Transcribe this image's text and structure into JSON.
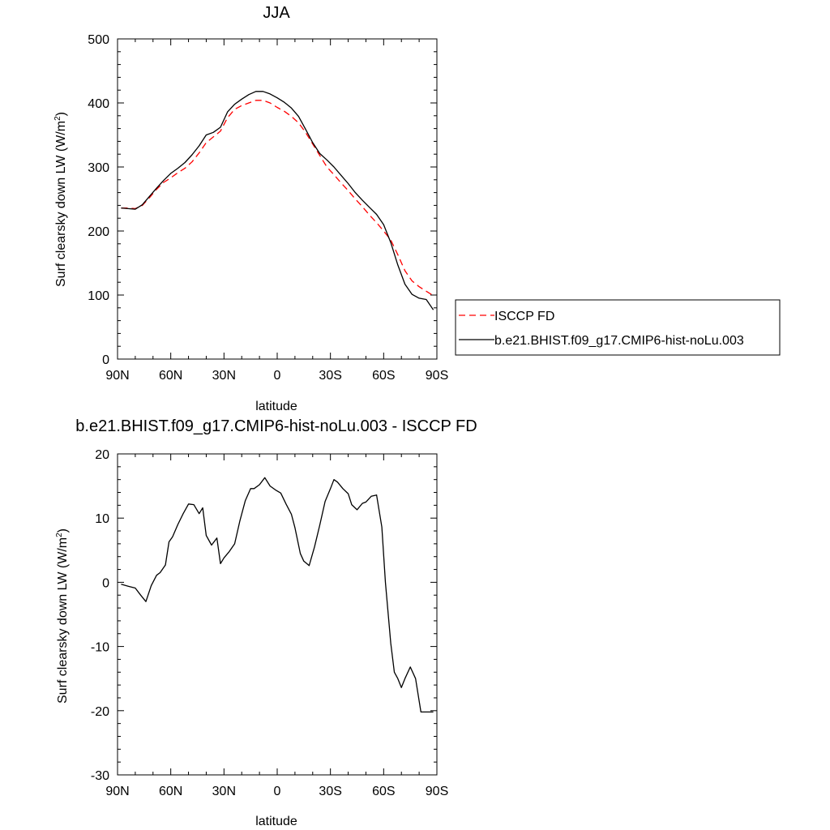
{
  "chart_data": [
    {
      "type": "line",
      "title": "JJA",
      "xlabel": "latitude",
      "ylabel": "Surf clearsky down LW (W/m",
      "ylabel_sup": "2",
      "ylabel_close": ")",
      "xlim": [
        90,
        -90
      ],
      "ylim": [
        0,
        500
      ],
      "x_ticks": [
        90,
        60,
        30,
        0,
        -30,
        -60,
        -90
      ],
      "x_tick_labels": [
        "90N",
        "60N",
        "30N",
        "0",
        "30S",
        "60S",
        "90S"
      ],
      "y_ticks": [
        0,
        100,
        200,
        300,
        400,
        500
      ],
      "y_tick_labels": [
        "0",
        "100",
        "200",
        "300",
        "400",
        "500"
      ],
      "grid": false,
      "legend_placement": "right",
      "series": [
        {
          "name": "ISCCP FD",
          "color": "#ff0000",
          "dash": "dashed",
          "x": [
            88,
            84,
            80,
            76,
            72,
            68,
            64,
            60,
            56,
            52,
            48,
            44,
            40,
            36,
            32,
            28,
            24,
            20,
            16,
            12,
            8,
            4,
            0,
            -4,
            -8,
            -12,
            -16,
            -20,
            -24,
            -28,
            -32,
            -36,
            -40,
            -44,
            -48,
            -52,
            -56,
            -60,
            -64,
            -68,
            -72,
            -76,
            -80,
            -84,
            -88
          ],
          "y": [
            236,
            236,
            235,
            240,
            252,
            265,
            276,
            283,
            291,
            298,
            308,
            322,
            338,
            347,
            356,
            377,
            390,
            396,
            400,
            404,
            404,
            400,
            393,
            387,
            379,
            369,
            354,
            336,
            318,
            300,
            288,
            275,
            263,
            250,
            238,
            225,
            213,
            200,
            186,
            163,
            138,
            122,
            113,
            106,
            99
          ]
        },
        {
          "name": "b.e21.BHIST.f09_g17.CMIP6-hist-noLu.003",
          "color": "#000000",
          "dash": "solid",
          "x": [
            88,
            84,
            80,
            76,
            72,
            68,
            64,
            60,
            56,
            52,
            48,
            44,
            40,
            36,
            32,
            28,
            24,
            20,
            16,
            12,
            8,
            4,
            0,
            -4,
            -8,
            -12,
            -16,
            -20,
            -24,
            -28,
            -32,
            -36,
            -40,
            -44,
            -48,
            -52,
            -56,
            -60,
            -64,
            -68,
            -72,
            -76,
            -80,
            -84,
            -88
          ],
          "y": [
            236,
            235,
            234,
            241,
            254,
            267,
            279,
            290,
            298,
            307,
            319,
            333,
            350,
            354,
            362,
            386,
            398,
            406,
            413,
            418,
            418,
            414,
            408,
            401,
            392,
            379,
            359,
            338,
            321,
            311,
            300,
            287,
            274,
            260,
            248,
            237,
            226,
            210,
            182,
            147,
            117,
            101,
            95,
            93,
            77
          ]
        }
      ]
    },
    {
      "type": "line",
      "title": "b.e21.BHIST.f09_g17.CMIP6-hist-noLu.003 - ISCCP FD",
      "xlabel": "latitude",
      "ylabel": "Surf clearsky down LW (W/m",
      "ylabel_sup": "2",
      "ylabel_close": ")",
      "xlim": [
        90,
        -90
      ],
      "ylim": [
        -30,
        20
      ],
      "x_ticks": [
        90,
        60,
        30,
        0,
        -30,
        -60,
        -90
      ],
      "x_tick_labels": [
        "90N",
        "60N",
        "30N",
        "0",
        "30S",
        "60S",
        "90S"
      ],
      "y_ticks": [
        -30,
        -20,
        -10,
        0,
        10,
        20
      ],
      "y_tick_labels": [
        "-30",
        "-20",
        "-10",
        "0",
        "10",
        "20"
      ],
      "grid": false,
      "series": [
        {
          "color": "#000000",
          "dash": "solid",
          "x": [
            88,
            84,
            80,
            77,
            74,
            71,
            68,
            66,
            63,
            61,
            59,
            56,
            53,
            50,
            47,
            44,
            42,
            40,
            37,
            34,
            32,
            30,
            27,
            24,
            21,
            18,
            15,
            13,
            10,
            7,
            4,
            1,
            -2,
            -5,
            -8,
            -10,
            -13,
            -15,
            -18,
            -21,
            -24,
            -27,
            -30,
            -32,
            -34,
            -37,
            -40,
            -42,
            -45,
            -48,
            -50,
            -53,
            -56,
            -59,
            -61,
            -64,
            -66,
            -68,
            -70,
            -72,
            -75,
            -78,
            -81,
            -84,
            -86,
            -88
          ],
          "y": [
            -0.3,
            -0.6,
            -0.9,
            -2.0,
            -3.0,
            -0.5,
            1.1,
            1.5,
            2.7,
            6.3,
            7.1,
            9.0,
            10.7,
            12.2,
            12.1,
            10.7,
            11.6,
            7.3,
            5.8,
            6.9,
            2.9,
            3.8,
            4.8,
            6.0,
            9.6,
            12.7,
            14.6,
            14.6,
            15.2,
            16.3,
            15.0,
            14.4,
            13.9,
            12.2,
            10.6,
            8.5,
            4.5,
            3.3,
            2.6,
            5.5,
            8.9,
            12.6,
            14.6,
            16.0,
            15.6,
            14.6,
            13.8,
            12.1,
            11.3,
            12.3,
            12.5,
            13.4,
            13.6,
            8.6,
            0.0,
            -9.5,
            -14.0,
            -15.0,
            -16.4,
            -15.0,
            -13.2,
            -15.0,
            -20.2,
            -20.2,
            -20.2,
            -20.2
          ]
        }
      ]
    }
  ]
}
